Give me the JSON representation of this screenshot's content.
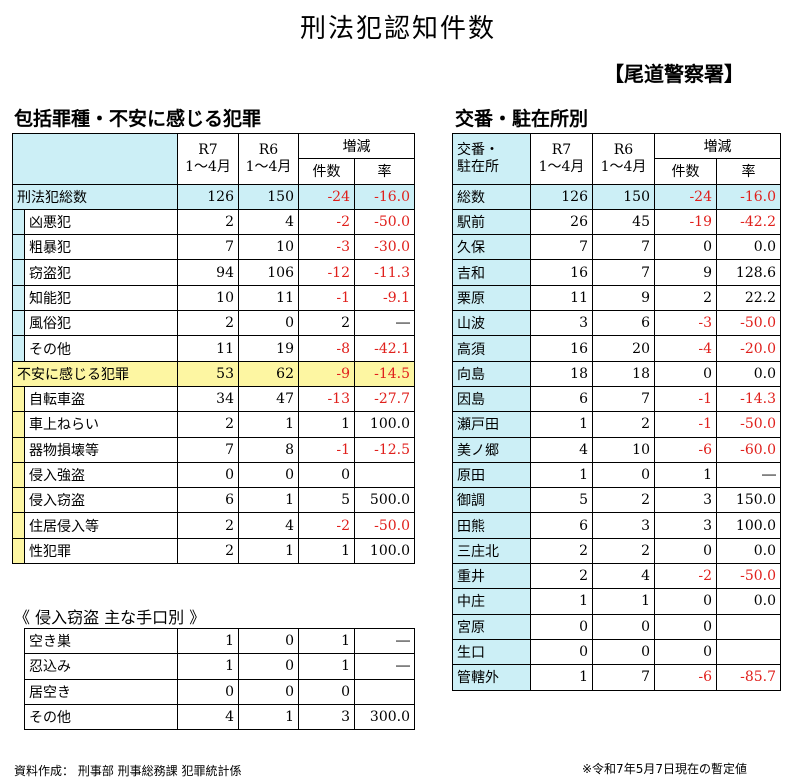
{
  "title": "刑法犯認知件数",
  "station": "【尾道警察署】",
  "left_section_title": "包括罪種・不安に感じる犯罪",
  "right_section_title": "交番・駐在所別",
  "headers": {
    "r7": "R7",
    "r6": "R6",
    "period": "1～4月",
    "change": "増減",
    "count": "件数",
    "rate": "率",
    "koban": "交番・",
    "chuzai": "駐在所"
  },
  "crime_table": {
    "total": {
      "label": "刑法犯総数",
      "r7": "126",
      "r6": "150",
      "diff": "-24",
      "rate": "-16.0"
    },
    "sub_total": [
      {
        "label": "凶悪犯",
        "r7": "2",
        "r6": "4",
        "diff": "-2",
        "rate": "-50.0"
      },
      {
        "label": "粗暴犯",
        "r7": "7",
        "r6": "10",
        "diff": "-3",
        "rate": "-30.0"
      },
      {
        "label": "窃盗犯",
        "r7": "94",
        "r6": "106",
        "diff": "-12",
        "rate": "-11.3"
      },
      {
        "label": "知能犯",
        "r7": "10",
        "r6": "11",
        "diff": "-1",
        "rate": "-9.1"
      },
      {
        "label": "風俗犯",
        "r7": "2",
        "r6": "0",
        "diff": "2",
        "rate": "―"
      },
      {
        "label": "その他",
        "r7": "11",
        "r6": "19",
        "diff": "-8",
        "rate": "-42.1"
      }
    ],
    "anxiety": {
      "label": "不安に感じる犯罪",
      "r7": "53",
      "r6": "62",
      "diff": "-9",
      "rate": "-14.5"
    },
    "sub_anxiety": [
      {
        "label": "自転車盗",
        "r7": "34",
        "r6": "47",
        "diff": "-13",
        "rate": "-27.7"
      },
      {
        "label": "車上ねらい",
        "r7": "2",
        "r6": "1",
        "diff": "1",
        "rate": "100.0"
      },
      {
        "label": "器物損壊等",
        "r7": "7",
        "r6": "8",
        "diff": "-1",
        "rate": "-12.5"
      },
      {
        "label": "侵入強盗",
        "r7": "0",
        "r6": "0",
        "diff": "0",
        "rate": ""
      },
      {
        "label": "侵入窃盗",
        "r7": "6",
        "r6": "1",
        "diff": "5",
        "rate": "500.0"
      },
      {
        "label": "住居侵入等",
        "r7": "2",
        "r6": "4",
        "diff": "-2",
        "rate": "-50.0"
      },
      {
        "label": "性犯罪",
        "r7": "2",
        "r6": "1",
        "diff": "1",
        "rate": "100.0"
      }
    ]
  },
  "burglary_title": "《 侵入窃盗 主な手口別 》",
  "burglary_table": [
    {
      "label": "空き巣",
      "r7": "1",
      "r6": "0",
      "diff": "1",
      "rate": "―"
    },
    {
      "label": "忍込み",
      "r7": "1",
      "r6": "0",
      "diff": "1",
      "rate": "―"
    },
    {
      "label": "居空き",
      "r7": "0",
      "r6": "0",
      "diff": "0",
      "rate": ""
    },
    {
      "label": "その他",
      "r7": "4",
      "r6": "1",
      "diff": "3",
      "rate": "300.0"
    }
  ],
  "koban_table": [
    {
      "label": "総数",
      "r7": "126",
      "r6": "150",
      "diff": "-24",
      "rate": "-16.0"
    },
    {
      "label": "駅前",
      "r7": "26",
      "r6": "45",
      "diff": "-19",
      "rate": "-42.2"
    },
    {
      "label": "久保",
      "r7": "7",
      "r6": "7",
      "diff": "0",
      "rate": "0.0"
    },
    {
      "label": "吉和",
      "r7": "16",
      "r6": "7",
      "diff": "9",
      "rate": "128.6"
    },
    {
      "label": "栗原",
      "r7": "11",
      "r6": "9",
      "diff": "2",
      "rate": "22.2"
    },
    {
      "label": "山波",
      "r7": "3",
      "r6": "6",
      "diff": "-3",
      "rate": "-50.0"
    },
    {
      "label": "高須",
      "r7": "16",
      "r6": "20",
      "diff": "-4",
      "rate": "-20.0"
    },
    {
      "label": "向島",
      "r7": "18",
      "r6": "18",
      "diff": "0",
      "rate": "0.0"
    },
    {
      "label": "因島",
      "r7": "6",
      "r6": "7",
      "diff": "-1",
      "rate": "-14.3"
    },
    {
      "label": "瀬戸田",
      "r7": "1",
      "r6": "2",
      "diff": "-1",
      "rate": "-50.0"
    },
    {
      "label": "美ノ郷",
      "r7": "4",
      "r6": "10",
      "diff": "-6",
      "rate": "-60.0"
    },
    {
      "label": "原田",
      "r7": "1",
      "r6": "0",
      "diff": "1",
      "rate": "―"
    },
    {
      "label": "御調",
      "r7": "5",
      "r6": "2",
      "diff": "3",
      "rate": "150.0"
    },
    {
      "label": "田熊",
      "r7": "6",
      "r6": "3",
      "diff": "3",
      "rate": "100.0"
    },
    {
      "label": "三庄北",
      "r7": "2",
      "r6": "2",
      "diff": "0",
      "rate": "0.0"
    },
    {
      "label": "重井",
      "r7": "2",
      "r6": "4",
      "diff": "-2",
      "rate": "-50.0"
    },
    {
      "label": "中庄",
      "r7": "1",
      "r6": "1",
      "diff": "0",
      "rate": "0.0"
    },
    {
      "label": "宮原",
      "r7": "0",
      "r6": "0",
      "diff": "0",
      "rate": ""
    },
    {
      "label": "生口",
      "r7": "0",
      "r6": "0",
      "diff": "0",
      "rate": ""
    },
    {
      "label": "管轄外",
      "r7": "1",
      "r6": "7",
      "diff": "-6",
      "rate": "-85.7"
    }
  ],
  "source_note": "資料作成： 刑事部 刑事総務課 犯罪統計係",
  "provisional_note": "※令和7年5月7日現在の暫定値",
  "colors": {
    "cyan": "#cceff6",
    "yellow": "#fdf6a2",
    "negative": "#e0201c"
  }
}
